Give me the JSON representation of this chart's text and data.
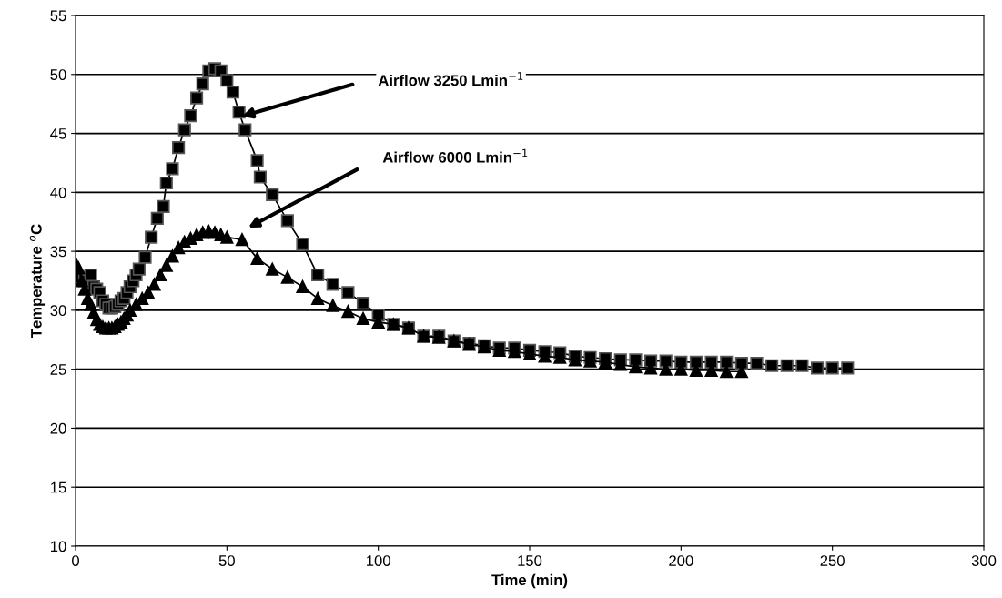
{
  "chart_data": {
    "type": "line",
    "xlabel": "Time (min)",
    "ylabel": "Temperature $^{o}$C",
    "xlim": [
      0,
      300
    ],
    "xticks": [
      0,
      50,
      100,
      150,
      200,
      250,
      300
    ],
    "ylim": [
      10,
      55
    ],
    "yticks": [
      10,
      15,
      20,
      25,
      30,
      35,
      40,
      45,
      50,
      55
    ],
    "grid": "y",
    "series": [
      {
        "color": "#000000",
        "marker": "square",
        "x": [
          0,
          1,
          3,
          5,
          6,
          7,
          8,
          9,
          10,
          11,
          12,
          13,
          14,
          15,
          16,
          17,
          18,
          19,
          20,
          21,
          23,
          25,
          27,
          29,
          30,
          32,
          34,
          36,
          38,
          40,
          42,
          44,
          46,
          48,
          50,
          52,
          54,
          56,
          60,
          61,
          65,
          70,
          75,
          80,
          85,
          90,
          95,
          100,
          105,
          110,
          115,
          120,
          125,
          130,
          135,
          140,
          145,
          150,
          155,
          160,
          165,
          170,
          175,
          180,
          185,
          190,
          195,
          200,
          205,
          210,
          215,
          220,
          225,
          230,
          235,
          240,
          245,
          250,
          255
        ],
        "values": [
          33.0,
          32.8,
          32.5,
          33.0,
          32.0,
          31.8,
          31.5,
          30.8,
          30.5,
          30.2,
          30.2,
          30.3,
          30.5,
          30.8,
          31.0,
          31.5,
          32.0,
          32.5,
          33.0,
          33.5,
          34.5,
          36.2,
          37.8,
          38.8,
          40.8,
          42.0,
          43.8,
          45.3,
          46.5,
          48.0,
          49.2,
          50.3,
          50.5,
          50.3,
          49.5,
          48.5,
          46.8,
          45.3,
          42.7,
          41.3,
          39.8,
          37.6,
          35.6,
          33.0,
          32.2,
          31.5,
          30.6,
          29.6,
          28.8,
          28.5,
          27.8,
          27.8,
          27.4,
          27.2,
          27.0,
          26.8,
          26.8,
          26.6,
          26.5,
          26.4,
          26.1,
          26.0,
          25.9,
          25.8,
          25.8,
          25.7,
          25.7,
          25.6,
          25.6,
          25.6,
          25.6,
          25.5,
          25.5,
          25.3,
          25.3,
          25.3,
          25.1,
          25.1,
          25.1
        ]
      },
      {
        "color": "#000000",
        "marker": "triangle",
        "x": [
          0,
          1,
          2,
          3,
          4,
          5,
          6,
          7,
          8,
          9,
          10,
          11,
          12,
          13,
          14,
          15,
          16,
          17,
          18,
          20,
          22,
          24,
          26,
          28,
          30,
          32,
          34,
          36,
          38,
          40,
          42,
          44,
          46,
          48,
          50,
          55,
          60,
          65,
          70,
          75,
          80,
          85,
          90,
          95,
          100,
          105,
          110,
          115,
          120,
          125,
          130,
          135,
          140,
          145,
          150,
          155,
          160,
          165,
          170,
          175,
          180,
          185,
          190,
          195,
          200,
          205,
          210,
          215,
          220
        ],
        "values": [
          34.0,
          33.6,
          32.5,
          31.8,
          31.0,
          30.5,
          29.8,
          29.2,
          28.8,
          28.6,
          28.5,
          28.5,
          28.5,
          28.6,
          28.8,
          29.0,
          29.3,
          29.6,
          30.0,
          30.5,
          31.0,
          31.5,
          32.2,
          33.0,
          33.8,
          34.6,
          35.3,
          35.8,
          36.1,
          36.4,
          36.6,
          36.7,
          36.6,
          36.4,
          36.2,
          36.0,
          34.4,
          33.5,
          32.8,
          32.0,
          31.0,
          30.4,
          29.9,
          29.3,
          29.0,
          28.8,
          28.5,
          27.8,
          27.7,
          27.4,
          27.1,
          26.9,
          26.6,
          26.5,
          26.3,
          26.1,
          26.0,
          25.8,
          25.7,
          25.6,
          25.4,
          25.2,
          25.1,
          25.0,
          25.0,
          24.9,
          24.9,
          24.8,
          24.8
        ]
      }
    ],
    "annotations": [
      "Airflow 3250 Lmin$^{−1}$",
      "Airflow 6000 Lmin$^{−1}$"
    ]
  }
}
